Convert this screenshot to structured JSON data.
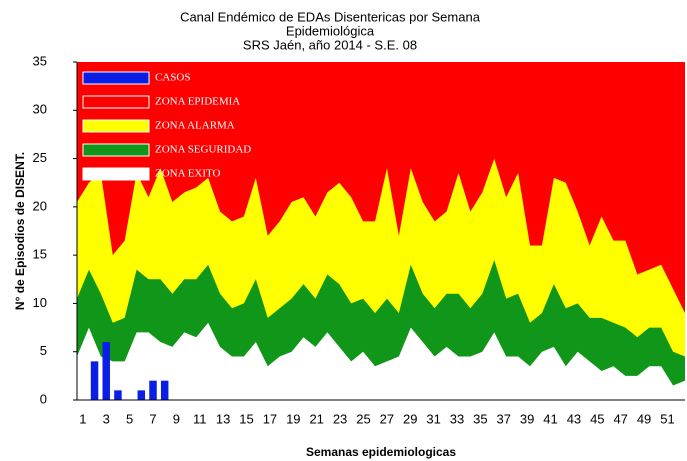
{
  "chart_data": {
    "type": "area",
    "title": [
      "Canal Endémico de EDAs Disentericas por Semana",
      "Epidemiológica",
      "SRS Jaén, año 2014 - S.E. 08"
    ],
    "x_label": "Semanas epidemiologicas",
    "y_label": "N° de Episodios de DISENT.",
    "categories": [
      1,
      null,
      3,
      null,
      5,
      null,
      7,
      null,
      9,
      null,
      11,
      null,
      13,
      null,
      15,
      null,
      17,
      null,
      19,
      null,
      21,
      null,
      23,
      null,
      25,
      null,
      27,
      null,
      29,
      null,
      31,
      null,
      33,
      null,
      35,
      null,
      37,
      null,
      39,
      null,
      41,
      null,
      43,
      null,
      45,
      null,
      47,
      null,
      49,
      null,
      51,
      null
    ],
    "ylim": [
      0,
      35
    ],
    "yticks": [
      0,
      5,
      10,
      15,
      20,
      25,
      30,
      35
    ],
    "grid": false,
    "legend": "top-left",
    "series": [
      {
        "name": "CASOS",
        "type": "bar",
        "color": "#0a1ee6",
        "values": [
          0,
          4,
          6,
          1,
          0,
          1,
          2,
          2,
          null,
          null,
          null,
          null,
          null,
          null,
          null,
          null,
          null,
          null,
          null,
          null,
          null,
          null,
          null,
          null,
          null,
          null,
          null,
          null,
          null,
          null,
          null,
          null,
          null,
          null,
          null,
          null,
          null,
          null,
          null,
          null,
          null,
          null,
          null,
          null,
          null,
          null,
          null,
          null,
          null,
          null,
          null,
          null
        ]
      },
      {
        "name": "ZONA EPIDEMIA",
        "color": "#ff0000",
        "values": [
          35,
          35,
          35,
          35,
          35,
          35,
          35,
          35,
          35,
          35,
          35,
          35,
          35,
          35,
          35,
          35,
          35,
          35,
          35,
          35,
          35,
          35,
          35,
          35,
          35,
          35,
          35,
          35,
          35,
          35,
          35,
          35,
          35,
          35,
          35,
          35,
          35,
          35,
          35,
          35,
          35,
          35,
          35,
          35,
          35,
          35,
          35,
          35,
          35,
          35,
          35,
          35
        ]
      },
      {
        "name": "ZONA ALARMA",
        "color": "#ffff00",
        "values": [
          20.5,
          22.5,
          23.5,
          15,
          16.5,
          23.5,
          21,
          24,
          20.5,
          21.5,
          22,
          23,
          19.5,
          18.5,
          19,
          23,
          17,
          18.5,
          20.5,
          21,
          19,
          21.5,
          22.5,
          21,
          18.5,
          18.5,
          24,
          17,
          24,
          20.5,
          18.5,
          19.5,
          23.5,
          19.5,
          21.5,
          25,
          21,
          23.5,
          16,
          16,
          23,
          22.5,
          19.5,
          16,
          19,
          16.5,
          16.5,
          13,
          13.5,
          14,
          11.5,
          9
        ]
      },
      {
        "name": "ZONA SEGURIDAD",
        "color": "#109618",
        "values": [
          10.5,
          13.5,
          11,
          8,
          8.5,
          13.5,
          12.5,
          12.5,
          11,
          12.5,
          12.5,
          14,
          11,
          9.5,
          10,
          12.5,
          8.5,
          9.5,
          10.5,
          12,
          10.5,
          13,
          12,
          10,
          10.5,
          9,
          10.5,
          9,
          14,
          11,
          9.5,
          11,
          11,
          9.5,
          11,
          14.5,
          10.5,
          11,
          8,
          9,
          12,
          9.5,
          10,
          8.5,
          8.5,
          8,
          7.5,
          6.5,
          7.5,
          7.5,
          5,
          4.5
        ]
      },
      {
        "name": "ZONA EXITO",
        "color": "#ffffff",
        "values": [
          4.5,
          7.5,
          4.5,
          4,
          4,
          7,
          7,
          6,
          5.5,
          7,
          6.5,
          8,
          5.5,
          4.5,
          4.5,
          6,
          3.5,
          4.5,
          5,
          6.5,
          5.5,
          7,
          5.5,
          4,
          5,
          3.5,
          4,
          4.5,
          7.5,
          6,
          4.5,
          5.5,
          4.5,
          4.5,
          5,
          7,
          4.5,
          4.5,
          3.5,
          5,
          5.5,
          3.5,
          5,
          4,
          3,
          3.5,
          2.5,
          2.5,
          3.5,
          3.5,
          1.5,
          2
        ]
      }
    ]
  }
}
